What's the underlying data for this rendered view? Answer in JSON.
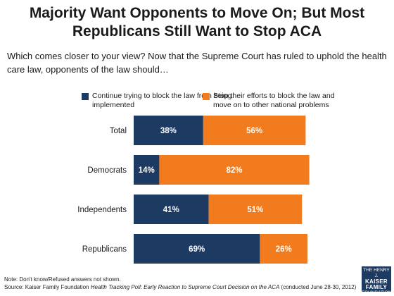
{
  "title_line1": "Majority Want Opponents to Move On; But Most",
  "title_line2": "Republicans Still Want to Stop ACA",
  "question": "Which comes closer to your view? Now that the Supreme Court has ruled to uphold the health care law, opponents of the law should…",
  "note": "Note: Don't know/Refused answers not shown.",
  "source_prefix": "Source: Kaiser Family Foundation ",
  "source_title": "Health Tracking Poll: Early Reaction to Supreme Court Decision on the ACA",
  "source_suffix": " (conducted June 28-30, 2012)",
  "logo": {
    "line1": "THE HENRY J.",
    "line2": "KAISER",
    "line3": "FAMILY",
    "line4": "FOUNDATION"
  },
  "colors": {
    "block": "#1d3a63",
    "move_on": "#f27b1d"
  },
  "chart_data": {
    "type": "bar",
    "orientation": "horizontal",
    "stacked": true,
    "categories": [
      "Total",
      "Democrats",
      "Independents",
      "Republicans"
    ],
    "series": [
      {
        "name": "Continue trying to block the law from being implemented",
        "values": [
          38,
          14,
          41,
          69
        ],
        "labels": [
          "38%",
          "14%",
          "41%",
          "69%"
        ],
        "color": "#1d3a63"
      },
      {
        "name": "Stop their efforts to block the law and move on to other national problems",
        "values": [
          56,
          82,
          51,
          26
        ],
        "labels": [
          "56%",
          "82%",
          "51%",
          "26%"
        ],
        "color": "#f27b1d"
      }
    ],
    "xlim": [
      0,
      100
    ],
    "legend_position": "top",
    "grid": false
  }
}
